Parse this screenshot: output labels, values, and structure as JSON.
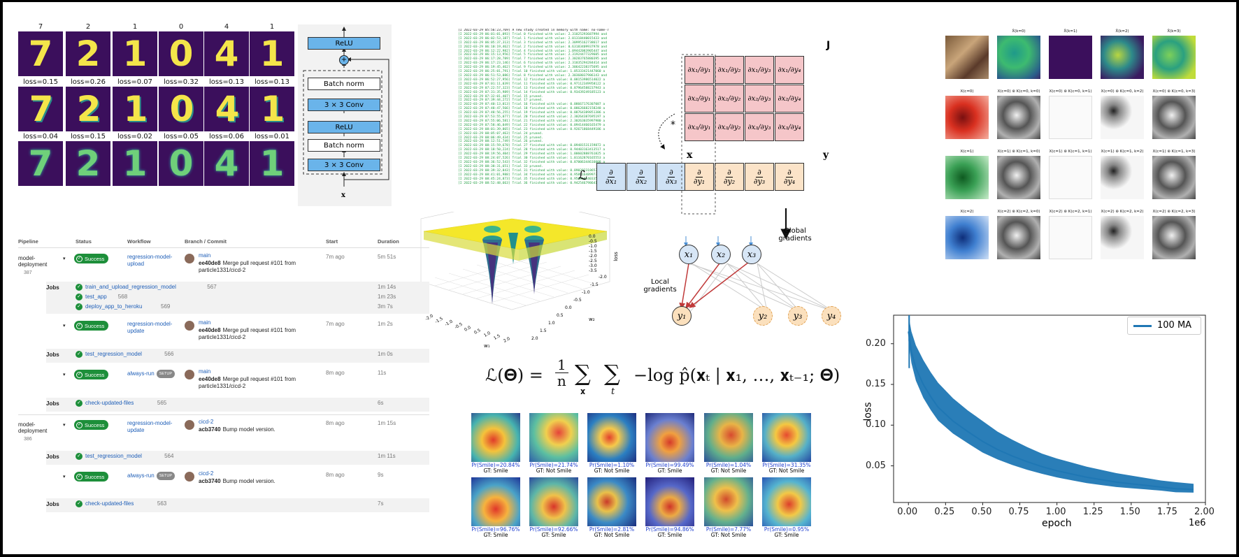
{
  "mnist": {
    "top_labels": [
      "7",
      "2",
      "1",
      "0",
      "4",
      "1"
    ],
    "row2_losses": [
      "loss=0.15",
      "loss=0.26",
      "loss=0.07",
      "loss=0.32",
      "loss=0.13",
      "loss=0.13"
    ],
    "row3_losses": [
      "loss=0.04",
      "loss=0.15",
      "loss=0.02",
      "loss=0.05",
      "loss=0.06",
      "loss=0.01"
    ],
    "digits": [
      "7",
      "2",
      "1",
      "0",
      "4",
      "1"
    ]
  },
  "resblock": {
    "relu_top": "ReLU",
    "batch_norm_1": "Batch norm",
    "conv_1": "3 × 3 Conv",
    "relu_mid": "ReLU",
    "batch_norm_2": "Batch norm",
    "conv_2": "3 × 3 Conv",
    "input": "x",
    "plus": "+"
  },
  "pipeline": {
    "headers": {
      "pipeline": "Pipeline",
      "status": "Status",
      "workflow": "Workflow",
      "branch": "Branch / Commit",
      "start": "Start",
      "duration": "Duration"
    },
    "rows": [
      {
        "pipeline": "model-deployment",
        "id": "387",
        "status": "Success",
        "workflow": "regression-model-upload",
        "branch": "main",
        "commit": "ee40de8",
        "message": "Merge pull request #101 from particle1331/cicd-2",
        "start": "7m ago",
        "duration": "5m 51s"
      },
      {
        "pipeline": "",
        "id": "",
        "status": "Success",
        "workflow": "regression-model-update",
        "branch": "main",
        "commit": "ee40de8",
        "message": "Merge pull request #101 from particle1331/cicd-2",
        "start": "7m ago",
        "duration": "1m 2s"
      },
      {
        "pipeline": "",
        "id": "",
        "status": "Success",
        "workflow": "always-run",
        "setup": "SETUP",
        "branch": "main",
        "commit": "ee40de8",
        "message": "Merge pull request #101 from particle1331/cicd-2",
        "start": "8m ago",
        "duration": "11s"
      },
      {
        "pipeline": "model-deployment",
        "id": "386",
        "status": "Success",
        "workflow": "regression-model-update",
        "branch": "cicd-2",
        "commit": "acb3740",
        "message": "Bump model version.",
        "start": "8m ago",
        "duration": "1m 15s"
      },
      {
        "pipeline": "",
        "id": "",
        "status": "Success",
        "workflow": "always-run",
        "setup": "SETUP",
        "branch": "cicd-2",
        "commit": "acb3740",
        "message": "Bump model version.",
        "start": "8m ago",
        "duration": "9s"
      }
    ],
    "jobs_label": "Jobs",
    "jobs": [
      {
        "name": "train_and_upload_regression_model",
        "num": "567",
        "dur": "1m 14s"
      },
      {
        "name": "test_app",
        "num": "568",
        "dur": "1m 23s"
      },
      {
        "name": "deploy_app_to_heroku",
        "num": "569",
        "dur": "3m 7s"
      },
      {
        "name": "test_regression_model",
        "num": "566",
        "dur": "1m 0s"
      },
      {
        "name": "check-updated-files",
        "num": "565",
        "dur": "6s"
      },
      {
        "name": "test_regression_model",
        "num": "564",
        "dur": "1m 11s"
      },
      {
        "name": "check-updated-files",
        "num": "563",
        "dur": "7s"
      }
    ]
  },
  "log": {
    "header": "[I 2022-03-29 05:56:23,769] A new study created in memory with name: no-name-7",
    "lines": [
      "[I 2022-03-29 06:01:01,093] Trial 0 finished with value: 2.31825293687994 and",
      "[I 2022-03-29 06:02:53,187] Trial 1 finished with value: 2.01318440015433 and",
      "[I 2022-03-29 06:05:37,313] Trial 3 finished with value: 2.30995162738617 and",
      "[I 2022-03-29 06:10:19,462] Trial 2 finished with value: 0.63183409937978 and",
      "[I 2022-03-29 06:12:22,982] Trial 4 finished with value: 1.09442083905447 and",
      "[I 2022-03-29 06:15:13,956] Trial 5 finished with value: 2.31924477329605 and",
      "[I 2022-03-29 06:17:28,789] Trial 7 finished with value: 2.30283765880395 and",
      "[I 2022-03-29 06:17:23,146] Trial 6 finished with value: 2.31835294284414 and",
      "[I 2022-03-29 06:19:45,462] Trial 9 finished with value: 2.30642238375695 and",
      "[I 2022-03-29 06:25:01,791] Trial 10 finished with value: 1.05333421447060 a",
      "[I 2022-03-29 06:51:53,086] Trial 8 finished with value: 2.30368037986143 and",
      "[I 2022-03-29 06:52:27,956] Trial 12 finished with value: 0.08153986514022 a",
      "[I 2022-03-29 07:01:11,039] Trial 11 finished with value: 0.97112349958122 a",
      "[I 2022-03-29 07:22:57,323] Trial 13 finished with value: 0.87964588237943 a",
      "[I 2022-03-29 07:31:35,989] Trial 14 finished with value: 0.93439249185123 a",
      "[I 2022-03-29 07:32:01,407] Trial 15 pruned.",
      "[I 2022-03-29 07:39:44,272] Trial 17 pruned.",
      "[I 2022-03-29 07:40:13,013] Trial 16 finished with value: 0.08667176307087 a",
      "[I 2022-03-29 07:48:47,566] Trial 18 finished with value: 0.08626682158248 a",
      "[I 2022-03-29 07:48:56,255] Trial 19 finished with value: 0.08764389851386 a",
      "[I 2022-03-29 07:53:55,077] Trial 20 finished with value: 2.30264387695197 a",
      "[I 2022-03-29 07:55:06,581] Trial 21 finished with value: 2.30263035997980 a",
      "[I 2022-03-29 07:58:46,049] Trial 22 finished with value: 0.09414460165479 a",
      "[I 2022-03-29 08:01:39,865] Trial 23 finished with value: 0.92671868449186 a",
      "[I 2022-03-29 08:05:07,463] Trial 24 pruned.",
      "[I 2022-03-29 08:06:49,434] Trial 25 pruned.",
      "[I 2022-03-29 08:12:51,749] Trial 26 pruned.",
      "[I 2022-03-29 08:15:59,678] Trial 27 finished with value: 0.09481531159872 a",
      "[I 2022-03-29 08:18:50,224] Trial 28 finished with value: 0.94403163413517 a",
      "[I 2022-03-29 08:19:56,404] Trial 29 finished with value: 1.00602888761825 a",
      "[I 2022-03-29 08:24:07,526] Trial 30 finished with value: 1.01162870165553 a",
      "[I 2022-03-29 08:36:52,543] Trial 32 finished with value: 0.87006344616008 a",
      "[I 2022-03-29 08:38:31,651] Trial 33 pruned.",
      "[I 2022-03-29 08:39:32,843] Trial 31 finished with value: 0.89029231865322 a",
      "[I 2022-03-29 08:41:01,988] Trial 34 finished with value: 0.95891648997303 a",
      "[I 2022-03-29 08:45:24,873] Trial 35 finished with value: 0.95086854033568 a",
      "[I 2022-03-29 08:52:48,663] Trial 36 finished with value: 0.94254679864102 a"
    ]
  },
  "surface": {
    "z_ticks": [
      "0.0",
      "-0.5",
      "-1.0",
      "-1.5",
      "-2.0",
      "-2.5",
      "-3.0",
      "-3.5"
    ],
    "x_ticks": [
      "-2.0",
      "-1.5",
      "-1.0",
      "-0.5",
      "0.0",
      "0.5",
      "1.0",
      "1.5",
      "2.0"
    ],
    "y_ticks": [
      "2.0",
      "1.5",
      "1.0",
      "0.5",
      "0.0",
      "-0.5",
      "-1.0",
      "-1.5",
      "-2.0"
    ],
    "x_label": "w₁",
    "y_label": "w₂",
    "z_label": "loss"
  },
  "jacobian": {
    "J_label": "J",
    "x_label": "x",
    "y_label": "y",
    "L_label": "ℒ",
    "star": "*",
    "equals": "=",
    "J": [
      [
        "∂x₁/∂y₁",
        "∂x₁/∂y₂",
        "∂x₁/∂y₃",
        "∂x₁/∂y₄"
      ],
      [
        "∂x₂/∂y₁",
        "∂x₂/∂y₂",
        "∂x₂/∂y₃",
        "∂x₂/∂y₄"
      ],
      [
        "∂x₃/∂y₁",
        "∂x₃/∂y₂",
        "∂x₃/∂y₃",
        "∂x₃/∂y₄"
      ]
    ],
    "x_row": [
      {
        "n": "∂",
        "d": "∂x₁"
      },
      {
        "n": "∂",
        "d": "∂x₂"
      },
      {
        "n": "∂",
        "d": "∂x₃"
      }
    ],
    "y_row": [
      {
        "n": "∂",
        "d": "∂y₁"
      },
      {
        "n": "∂",
        "d": "∂y₂"
      },
      {
        "n": "∂",
        "d": "∂y₃"
      },
      {
        "n": "∂",
        "d": "∂y₄"
      }
    ]
  },
  "graph": {
    "x_nodes": [
      "x₁",
      "x₂",
      "x₃"
    ],
    "y_nodes": [
      "y₁",
      "y₂",
      "y₃",
      "y₄"
    ],
    "global_label": "Global gradients",
    "local_label": "Local gradients"
  },
  "formula": "ℒ(𝚯) = ",
  "formula_rest": "−log p̂(𝐱ₜ | 𝐱₁, …, 𝐱ₜ₋₁; 𝚯)",
  "formula_frac_num": "1",
  "formula_frac_den": "n",
  "formula_sum1": "∑",
  "formula_sum1_sub": "𝐱",
  "formula_sum2": "∑",
  "formula_sum2_sub": "t",
  "faces": [
    {
      "p": "Pr(Smile)=20.84%",
      "gt": "GT: Smile"
    },
    {
      "p": "Pr(Smile)=21.74%",
      "gt": "GT: Not Smile"
    },
    {
      "p": "Pr(Smile)=1.10%",
      "gt": "GT: Not Smile"
    },
    {
      "p": "Pr(Smile)=99.49%",
      "gt": "GT: Smile"
    },
    {
      "p": "Pr(Smile)=1.04%",
      "gt": "GT: Not Smile"
    },
    {
      "p": "Pr(Smile)=31.35%",
      "gt": "GT: Not Smile"
    },
    {
      "p": "Pr(Smile)=96.76%",
      "gt": "GT: Smile"
    },
    {
      "p": "Pr(Smile)=92.66%",
      "gt": "GT: Smile"
    },
    {
      "p": "Pr(Smile)=2.81%",
      "gt": "GT: Not Smile"
    },
    {
      "p": "Pr(Smile)=94.86%",
      "gt": "GT: Smile"
    },
    {
      "p": "Pr(Smile)=7.77%",
      "gt": "GT: Not Smile"
    },
    {
      "p": "Pr(Smile)=0.95%",
      "gt": "GT: Smile"
    }
  ],
  "conv_grid": {
    "titles": [
      [
        "",
        "X̄(k=0)",
        "X̄(k=1)",
        "X̄(k=2)",
        "X̄(k=3)"
      ],
      [
        "X(c=0)",
        "X(c=0) ⊛ K(c=0, k=0)",
        "X(c=0) ⊛ K(c=0, k=1)",
        "X(c=0) ⊛ K(c=0, k=2)",
        "X(c=0) ⊛ K(c=0, k=3)"
      ],
      [
        "X(c=1)",
        "X(c=1) ⊛ K(c=1, k=0)",
        "X(c=1) ⊛ K(c=1, k=1)",
        "X(c=1) ⊛ K(c=1, k=2)",
        "X(c=1) ⊛ K(c=1, k=3)"
      ],
      [
        "X(c=2)",
        "X(c=2) ⊛ K(c=2, k=0)",
        "X(c=2) ⊛ K(c=2, k=1)",
        "X(c=2) ⊛ K(c=2, k=2)",
        "X(c=2) ⊛ K(c=2, k=3)"
      ]
    ]
  },
  "chart_data": {
    "type": "line",
    "title": "",
    "xlabel": "epoch",
    "ylabel": "loss",
    "x_scale_note": "1e6",
    "xlim": [
      -0.1,
      2.0
    ],
    "ylim": [
      0.005,
      0.235
    ],
    "x_ticks": [
      "0.00",
      "0.25",
      "0.50",
      "0.75",
      "1.00",
      "1.25",
      "1.50",
      "1.75",
      "2.00"
    ],
    "y_ticks": [
      "0.05",
      "0.10",
      "0.15",
      "0.20"
    ],
    "legend": "100 MA",
    "legend_position": "top-right",
    "series": [
      {
        "name": "100 MA",
        "color": "#1f77b4",
        "x": [
          0.0,
          0.02,
          0.05,
          0.1,
          0.15,
          0.2,
          0.3,
          0.4,
          0.5,
          0.6,
          0.7,
          0.8,
          0.9,
          1.0,
          1.1,
          1.2,
          1.3,
          1.4,
          1.5,
          1.6,
          1.7,
          1.8,
          1.92
        ],
        "y": [
          0.215,
          0.19,
          0.17,
          0.15,
          0.135,
          0.122,
          0.105,
          0.092,
          0.08,
          0.07,
          0.062,
          0.055,
          0.049,
          0.044,
          0.04,
          0.036,
          0.033,
          0.03,
          0.028,
          0.026,
          0.024,
          0.022,
          0.021
        ],
        "band": [
          0.02,
          0.025,
          0.028,
          0.03,
          0.03,
          0.03,
          0.028,
          0.026,
          0.025,
          0.022,
          0.02,
          0.018,
          0.016,
          0.015,
          0.014,
          0.013,
          0.012,
          0.011,
          0.01,
          0.009,
          0.008,
          0.008,
          0.007
        ]
      }
    ]
  }
}
